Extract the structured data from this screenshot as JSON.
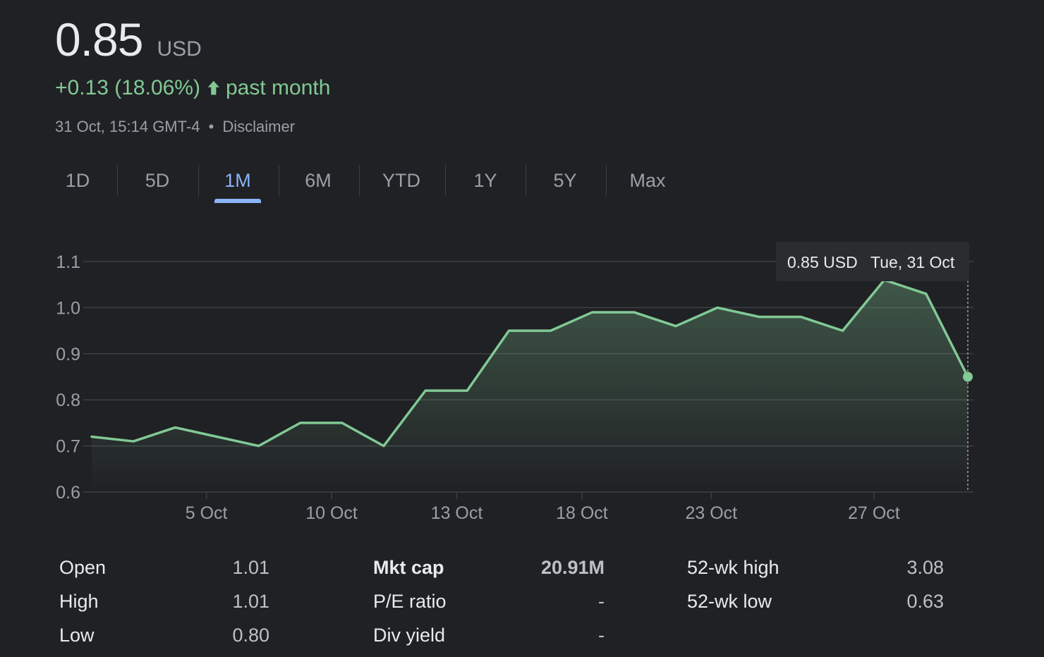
{
  "header": {
    "price": "0.85",
    "currency": "USD",
    "change": "+0.13 (18.06%)",
    "period": "past month",
    "timestamp": "31 Oct, 15:14 GMT-4",
    "disclaimer": "Disclaimer"
  },
  "tabs": [
    {
      "label": "1D",
      "active": false
    },
    {
      "label": "5D",
      "active": false
    },
    {
      "label": "1M",
      "active": true
    },
    {
      "label": "6M",
      "active": false
    },
    {
      "label": "YTD",
      "active": false
    },
    {
      "label": "1Y",
      "active": false
    },
    {
      "label": "5Y",
      "active": false
    },
    {
      "label": "Max",
      "active": false
    }
  ],
  "colors": {
    "background": "#202124",
    "line": "#81c995",
    "accent": "#8ab4f8",
    "grid": "#3c4043"
  },
  "tooltip": {
    "price": "0.85 USD",
    "date": "Tue, 31 Oct"
  },
  "chart_data": {
    "type": "area",
    "x_tick_labels": [
      "5 Oct",
      "10 Oct",
      "13 Oct",
      "18 Oct",
      "23 Oct",
      "27 Oct"
    ],
    "y_ticks": [
      "1.1",
      "1.0",
      "0.9",
      "0.8",
      "0.7",
      "0.6"
    ],
    "ylim": [
      0.6,
      1.1
    ],
    "series": [
      {
        "values": [
          0.72,
          0.71,
          0.74,
          0.72,
          0.7,
          0.75,
          0.75,
          0.7,
          0.82,
          0.82,
          0.95,
          0.95,
          0.99,
          0.99,
          0.96,
          1.0,
          0.98,
          0.98,
          0.95,
          1.06,
          1.03,
          0.85
        ]
      }
    ],
    "x_tick_positions": [
      2.75,
      5.75,
      8.75,
      11.75,
      14.85,
      18.75
    ],
    "grid": true,
    "fill": "gradient"
  },
  "stats": {
    "col1": [
      {
        "label": "Open",
        "value": "1.01"
      },
      {
        "label": "High",
        "value": "1.01"
      },
      {
        "label": "Low",
        "value": "0.80"
      }
    ],
    "col2": [
      {
        "label": "Mkt cap",
        "value": "20.91M",
        "bold": true
      },
      {
        "label": "P/E ratio",
        "value": "-"
      },
      {
        "label": "Div yield",
        "value": "-"
      }
    ],
    "col3": [
      {
        "label": "52-wk high",
        "value": "3.08"
      },
      {
        "label": "52-wk low",
        "value": "0.63"
      }
    ]
  }
}
